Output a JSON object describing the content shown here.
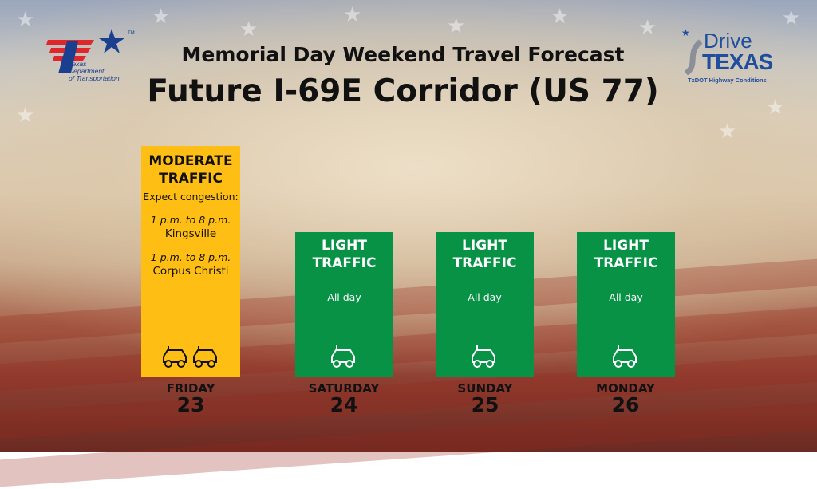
{
  "header": {
    "line1": "Memorial Day Weekend Travel Forecast",
    "line2": "Future I-69E Corridor (US 77)"
  },
  "logos": {
    "txdot_text": [
      "Texas",
      "Department",
      "of Transportation"
    ],
    "txdot_tm": "TM",
    "drive_top": "Drive",
    "drive_main": "TEXAS",
    "drive_tag": "TxDOT Highway Conditions"
  },
  "colors": {
    "moderate": "#ffbe14",
    "light": "#079246"
  },
  "days": [
    {
      "name": "FRIDAY",
      "date": "23",
      "level_line1": "MODERATE",
      "level_line2": "TRAFFIC",
      "note": "Expect congestion:",
      "windows": [
        {
          "time": "1 p.m. to 8 p.m.",
          "place": "Kingsville"
        },
        {
          "time": "1 p.m. to 8 p.m.",
          "place": "Corpus Christi"
        }
      ],
      "car_icons": 2
    },
    {
      "name": "SATURDAY",
      "date": "24",
      "level_line1": "LIGHT",
      "level_line2": "TRAFFIC",
      "note": "All day",
      "car_icons": 1
    },
    {
      "name": "SUNDAY",
      "date": "25",
      "level_line1": "LIGHT",
      "level_line2": "TRAFFIC",
      "note": "All day",
      "car_icons": 1
    },
    {
      "name": "MONDAY",
      "date": "26",
      "level_line1": "LIGHT",
      "level_line2": "TRAFFIC",
      "note": "All day",
      "car_icons": 1
    }
  ]
}
